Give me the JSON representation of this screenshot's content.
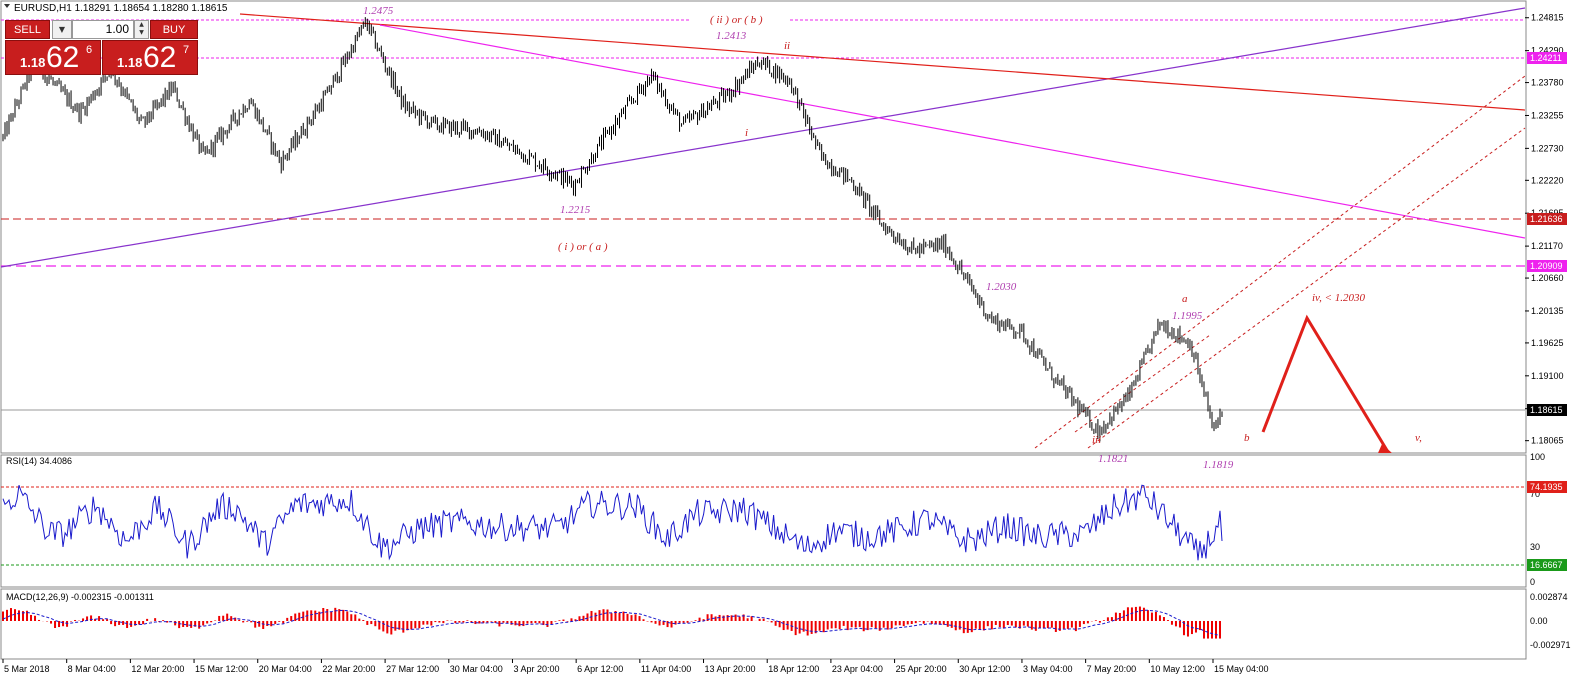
{
  "header": {
    "symbol_line": "EURUSD,H1  1.18291 1.18654 1.18280 1.18615"
  },
  "trade_panel": {
    "sell_label": "SELL",
    "buy_label": "BUY",
    "volume": "1.00",
    "sell_price_prefix": "1.18",
    "sell_price_big": "62",
    "sell_price_sup": "6",
    "buy_price_prefix": "1.18",
    "buy_price_big": "62",
    "buy_price_sup": "7"
  },
  "chart_data": [
    {
      "type": "candlestick",
      "title": "EURUSD,H1",
      "ohlc": {
        "open": 1.18291,
        "high": 1.18654,
        "low": 1.1828,
        "close": 1.18615
      },
      "ylim": [
        1.179,
        1.2505
      ],
      "y_ticks": [
        "1.24815",
        "1.24290",
        "1.23780",
        "1.23255",
        "1.22730",
        "1.22220",
        "1.21695",
        "1.21170",
        "1.20660",
        "1.20135",
        "1.19625",
        "1.19100",
        "1.18575",
        "1.18065"
      ],
      "x_ticks": [
        "5 Mar 2018",
        "8 Mar 04:00",
        "12 Mar 20:00",
        "15 Mar 12:00",
        "20 Mar 04:00",
        "22 Mar 20:00",
        "27 Mar 12:00",
        "30 Mar 04:00",
        "3 Apr 20:00",
        "6 Apr 12:00",
        "11 Apr 04:00",
        "13 Apr 20:00",
        "18 Apr 12:00",
        "23 Apr 04:00",
        "25 Apr 20:00",
        "30 Apr 12:00",
        "3 May 04:00",
        "7 May 20:00",
        "10 May 12:00",
        "15 May 04:00"
      ],
      "price_path": [
        [
          0,
          1.229
        ],
        [
          0.02,
          1.241
        ],
        [
          0.05,
          1.233
        ],
        [
          0.07,
          1.24
        ],
        [
          0.09,
          1.231
        ],
        [
          0.11,
          1.237
        ],
        [
          0.13,
          1.226
        ],
        [
          0.16,
          1.235
        ],
        [
          0.18,
          1.225
        ],
        [
          0.21,
          1.236
        ],
        [
          0.235,
          1.2475
        ],
        [
          0.26,
          1.234
        ],
        [
          0.28,
          1.231
        ],
        [
          0.31,
          1.23
        ],
        [
          0.34,
          1.226
        ],
        [
          0.37,
          1.2215
        ],
        [
          0.39,
          1.229
        ],
        [
          0.42,
          1.239
        ],
        [
          0.44,
          1.231
        ],
        [
          0.47,
          1.236
        ],
        [
          0.49,
          1.2413
        ],
        [
          0.51,
          1.238
        ],
        [
          0.53,
          1.226
        ],
        [
          0.55,
          1.222
        ],
        [
          0.57,
          1.215
        ],
        [
          0.59,
          1.211
        ],
        [
          0.61,
          1.212
        ],
        [
          0.62,
          1.208
        ],
        [
          0.64,
          1.2
        ],
        [
          0.66,
          1.198
        ],
        [
          0.68,
          1.191
        ],
        [
          0.71,
          1.1821
        ],
        [
          0.73,
          1.188
        ],
        [
          0.75,
          1.1995
        ],
        [
          0.77,
          1.196
        ],
        [
          0.785,
          1.1819
        ],
        [
          0.79,
          1.1862
        ]
      ],
      "level_labels": [
        "1.24211",
        "1.21636",
        "1.20909",
        "1.18615"
      ],
      "annotations": [
        "1.2475",
        "( ii ) or ( b )",
        "1.2413",
        "ii",
        "i",
        "1.2215",
        "( i ) or ( a )",
        "1.2030",
        "a",
        "1.1995",
        "iv, < 1.2030",
        "iii",
        "b",
        "v,",
        "1.1821",
        "1.1819"
      ]
    },
    {
      "type": "line",
      "title": "RSI(14) 34.4086",
      "ylim": [
        0,
        100
      ],
      "y_ticks": [
        "100",
        "70",
        "30",
        "0"
      ],
      "levels": [
        "74.1935",
        "16.6667"
      ],
      "current": 34.4086
    },
    {
      "type": "histogram",
      "title": "MACD(12,26,9) -0.002315 -0.001311",
      "values": {
        "macd": -0.002315,
        "signal": -0.001311
      },
      "y_ticks": [
        "0.002874",
        "0.00",
        "-0.002971"
      ]
    }
  ],
  "colors": {
    "candles": "#000000",
    "magenta": "#ee22ee",
    "purple": "#8833cc",
    "red": "#e0201a",
    "darkred": "#c81e1e",
    "rsi": "#1a1acc",
    "macd_hist": "#ee0000",
    "label_magenta": "#b040b0"
  }
}
